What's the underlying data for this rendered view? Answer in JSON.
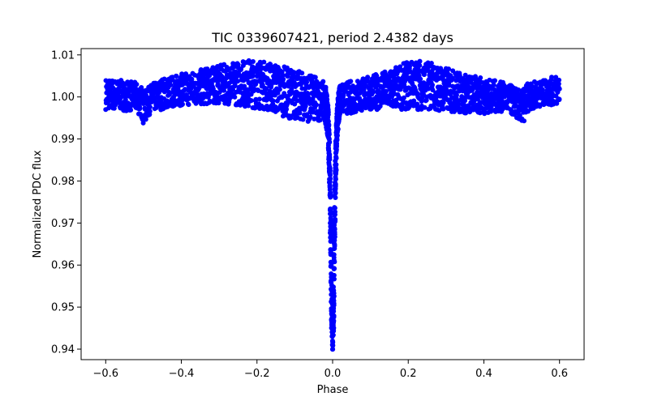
{
  "chart_data": {
    "type": "scatter",
    "title": "TIC 0339607421, period 2.4382 days",
    "xlabel": "Phase",
    "ylabel": "Normalized PDC flux",
    "xlim": [
      -0.665,
      0.665
    ],
    "ylim": [
      0.9375,
      1.0115
    ],
    "xticks": [
      -0.6,
      -0.4,
      -0.2,
      0.0,
      0.2,
      0.4,
      0.6
    ],
    "xtick_labels": [
      "−0.6",
      "−0.4",
      "−0.2",
      "0.0",
      "0.2",
      "0.4",
      "0.6"
    ],
    "yticks": [
      0.94,
      0.95,
      0.96,
      0.97,
      0.98,
      0.99,
      1.0,
      1.01
    ],
    "ytick_labels": [
      "0.94",
      "0.95",
      "0.96",
      "0.97",
      "0.98",
      "0.99",
      "1.00",
      "1.01"
    ],
    "grid": false,
    "marker_color": "#0000ff",
    "series": [
      {
        "envelope": {
          "x": [
            -0.6,
            -0.56,
            -0.52,
            -0.505,
            -0.5,
            -0.495,
            -0.48,
            -0.45,
            -0.4,
            -0.35,
            -0.3,
            -0.25,
            -0.22,
            -0.18,
            -0.15,
            -0.1,
            -0.05,
            -0.025,
            -0.018,
            -0.012,
            -0.008,
            -0.005,
            -0.003,
            0.0,
            0.003,
            0.005,
            0.008,
            0.012,
            0.018,
            0.025,
            0.05,
            0.1,
            0.15,
            0.2,
            0.23,
            0.25,
            0.3,
            0.35,
            0.4,
            0.45,
            0.48,
            0.495,
            0.5,
            0.505,
            0.52,
            0.56,
            0.6
          ],
          "upper": [
            1.0045,
            1.004,
            1.0035,
            1.0025,
            1.0015,
            1.0015,
            1.003,
            1.0045,
            1.0055,
            1.0065,
            1.0075,
            1.0085,
            1.009,
            1.0085,
            1.008,
            1.0065,
            1.005,
            1.004,
            1.0025,
            0.998,
            0.99,
            0.975,
            0.958,
            0.948,
            0.958,
            0.975,
            0.99,
            0.998,
            1.003,
            1.003,
            1.004,
            1.005,
            1.0065,
            1.0085,
            1.009,
            1.0085,
            1.007,
            1.0055,
            1.0045,
            1.0035,
            1.0025,
            1.0015,
            1.0015,
            1.0025,
            1.0035,
            1.004,
            1.0055
          ],
          "lower": [
            0.997,
            0.9968,
            0.9965,
            0.995,
            0.9935,
            0.994,
            0.9965,
            0.997,
            0.998,
            0.998,
            0.9985,
            0.998,
            0.9975,
            0.997,
            0.996,
            0.9945,
            0.994,
            0.9945,
            0.9935,
            0.99,
            0.978,
            0.96,
            0.945,
            0.9395,
            0.945,
            0.96,
            0.978,
            0.99,
            0.9955,
            0.996,
            0.996,
            0.997,
            0.997,
            0.997,
            0.997,
            0.997,
            0.9965,
            0.996,
            0.996,
            0.9965,
            0.9955,
            0.994,
            0.9935,
            0.994,
            0.997,
            0.998,
            0.998
          ]
        }
      }
    ]
  }
}
